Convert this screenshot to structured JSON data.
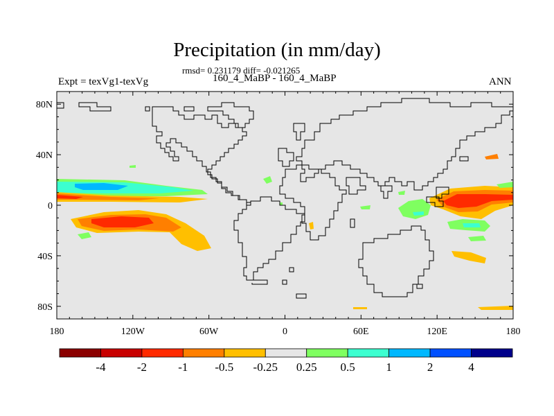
{
  "plot": {
    "title": "Precipitation (in mm/day)",
    "subtitle": "rmsd= 0.231179 diff= -0.021265",
    "experiment_label": "Expt = texVg1-texVg",
    "cases_label": "160_4_MaBP - 160_4_MaBP",
    "season_label": "ANN"
  },
  "axes": {
    "y_ticks": [
      {
        "label": "80N",
        "lat": 80
      },
      {
        "label": "40N",
        "lat": 40
      },
      {
        "label": "0",
        "lat": 0
      },
      {
        "label": "40S",
        "lat": -40
      },
      {
        "label": "80S",
        "lat": -80
      }
    ],
    "x_ticks": [
      {
        "label": "180",
        "lon": -180
      },
      {
        "label": "120W",
        "lon": -120
      },
      {
        "label": "60W",
        "lon": -60
      },
      {
        "label": "0",
        "lon": 0
      },
      {
        "label": "60E",
        "lon": 60
      },
      {
        "label": "120E",
        "lon": 120
      },
      {
        "label": "180",
        "lon": 180
      }
    ]
  },
  "colorbar": {
    "colors": [
      "#8b0000",
      "#c80000",
      "#ff2a00",
      "#ff7f00",
      "#ffbf00",
      "#e6e6e6",
      "#7fff60",
      "#3cffd0",
      "#00b8ff",
      "#0050ff",
      "#00008b"
    ],
    "labels": [
      "-4",
      "-2",
      "-1",
      "-0.5",
      "-0.25",
      "0.25",
      "0.5",
      "1",
      "2",
      "4"
    ]
  },
  "colors": {
    "background": "#e6e6e6",
    "coast": "#000000"
  },
  "chart_data": {
    "type": "map",
    "variable": "Precipitation difference",
    "units": "mm/day",
    "projection": "cylindrical equidistant",
    "lon_range": [
      -180,
      180
    ],
    "lat_range": [
      -90,
      90
    ],
    "anomalies": [
      {
        "name": "north-pacific-wet-band",
        "lon": [
          -180,
          -65
        ],
        "lat": [
          8,
          20
        ],
        "max_value": 1
      },
      {
        "name": "equatorial-east-pacific-dry",
        "lon": [
          -180,
          -55
        ],
        "lat": [
          0,
          7
        ],
        "min_value": -1
      },
      {
        "name": "south-pacific-dry-band",
        "lon": [
          -160,
          -60
        ],
        "lat": [
          -30,
          -5
        ],
        "min_value": -2
      },
      {
        "name": "west-pacific-dry",
        "lon": [
          115,
          180
        ],
        "lat": [
          -5,
          12
        ],
        "min_value": -2
      },
      {
        "name": "west-pacific-wet-south",
        "lon": [
          130,
          165
        ],
        "lat": [
          -20,
          -12
        ],
        "max_value": 1
      },
      {
        "name": "indian-ocean-wet",
        "lon": [
          60,
          100
        ],
        "lat": [
          -12,
          2
        ],
        "max_value": 1
      }
    ]
  }
}
